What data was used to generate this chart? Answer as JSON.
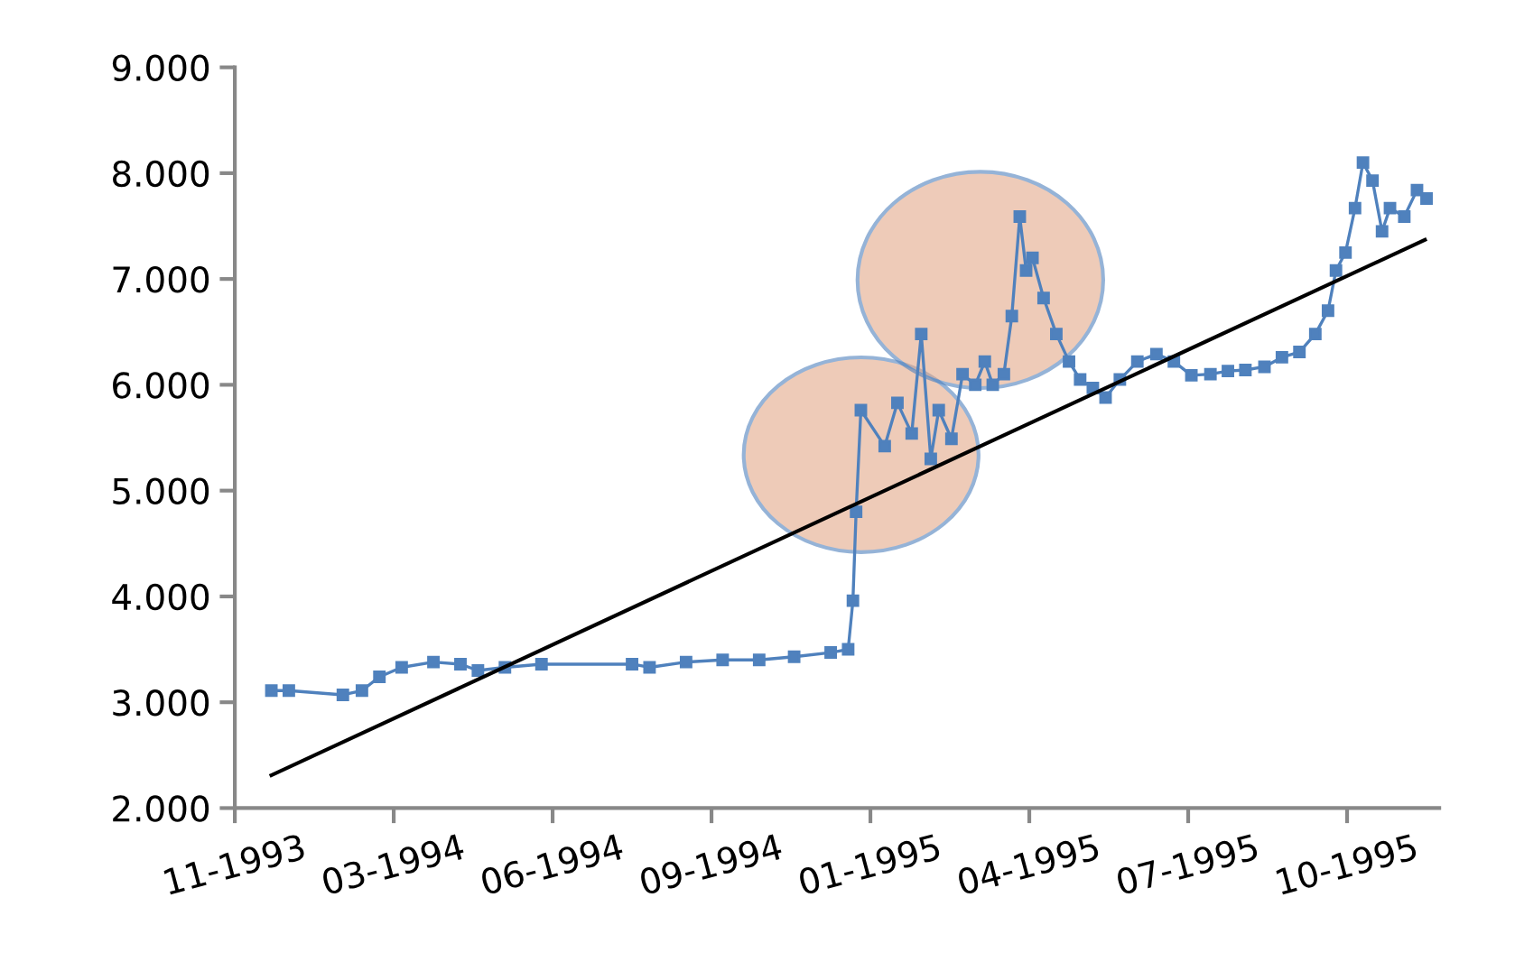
{
  "chart_data": {
    "type": "line",
    "marker": "square",
    "grid": false,
    "xlim": [
      "1993-11-30",
      "1995-12-28"
    ],
    "xticks": [
      {
        "value": "1993-11-30",
        "label": "11-1993"
      },
      {
        "value": "1994-03-10",
        "label": "03-1994"
      },
      {
        "value": "1994-06-18",
        "label": "06-1994"
      },
      {
        "value": "1994-09-26",
        "label": "09-1994"
      },
      {
        "value": "1995-01-04",
        "label": "01-1995"
      },
      {
        "value": "1995-04-14",
        "label": "04-1995"
      },
      {
        "value": "1995-07-23",
        "label": "07-1995"
      },
      {
        "value": "1995-10-31",
        "label": "10-1995"
      }
    ],
    "ylim": [
      2000,
      9000
    ],
    "yticks": [
      {
        "value": 2000,
        "label": "2.000"
      },
      {
        "value": 3000,
        "label": "3.000"
      },
      {
        "value": 4000,
        "label": "4.000"
      },
      {
        "value": 5000,
        "label": "5.000"
      },
      {
        "value": 6000,
        "label": "6.000"
      },
      {
        "value": 7000,
        "label": "7.000"
      },
      {
        "value": 8000,
        "label": "8.000"
      },
      {
        "value": 9000,
        "label": "9.000"
      }
    ],
    "series": [
      {
        "color": "#4f81bd",
        "x": [
          "1993-12-23",
          "1994-01-03",
          "1994-02-06",
          "1994-02-18",
          "1994-03-01",
          "1994-03-15",
          "1994-04-04",
          "1994-04-21",
          "1994-05-02",
          "1994-05-19",
          "1994-06-11",
          "1994-08-07",
          "1994-08-18",
          "1994-09-10",
          "1994-10-03",
          "1994-10-26",
          "1994-11-17",
          "1994-12-10",
          "1994-12-21",
          "1994-12-24",
          "1994-12-26",
          "1994-12-29",
          "1995-01-13",
          "1995-01-21",
          "1995-01-30",
          "1995-02-05",
          "1995-02-11",
          "1995-02-16",
          "1995-02-24",
          "1995-03-03",
          "1995-03-11",
          "1995-03-17",
          "1995-03-22",
          "1995-03-29",
          "1995-04-03",
          "1995-04-08",
          "1995-04-12",
          "1995-04-16",
          "1995-04-23",
          "1995-05-01",
          "1995-05-09",
          "1995-05-16",
          "1995-05-24",
          "1995-06-01",
          "1995-06-10",
          "1995-06-21",
          "1995-07-03",
          "1995-07-14",
          "1995-07-25",
          "1995-08-06",
          "1995-08-17",
          "1995-08-28",
          "1995-09-09",
          "1995-09-20",
          "1995-10-01",
          "1995-10-11",
          "1995-10-19",
          "1995-10-24",
          "1995-10-30",
          "1995-11-05",
          "1995-11-10",
          "1995-11-16",
          "1995-11-22",
          "1995-11-27",
          "1995-12-06",
          "1995-12-14",
          "1995-12-20"
        ],
        "values": [
          3110,
          3110,
          3070,
          3110,
          3240,
          3330,
          3380,
          3360,
          3300,
          3330,
          3360,
          3360,
          3330,
          3380,
          3400,
          3400,
          3430,
          3470,
          3500,
          3960,
          4800,
          5760,
          5420,
          5830,
          5540,
          6480,
          5300,
          5760,
          5490,
          6100,
          6000,
          6220,
          6000,
          6100,
          6650,
          7590,
          7080,
          7200,
          6820,
          6480,
          6220,
          6050,
          5970,
          5880,
          6050,
          6220,
          6290,
          6220,
          6090,
          6100,
          6130,
          6140,
          6170,
          6260,
          6310,
          6480,
          6700,
          7080,
          7250,
          7670,
          8100,
          7930,
          7450,
          7670,
          7590,
          7840,
          7760
        ]
      },
      {
        "type": "line",
        "marker": "none",
        "color": "#000000",
        "x": [
          "1993-12-23",
          "1995-12-19"
        ],
        "values": [
          2310,
          7370
        ]
      }
    ]
  }
}
